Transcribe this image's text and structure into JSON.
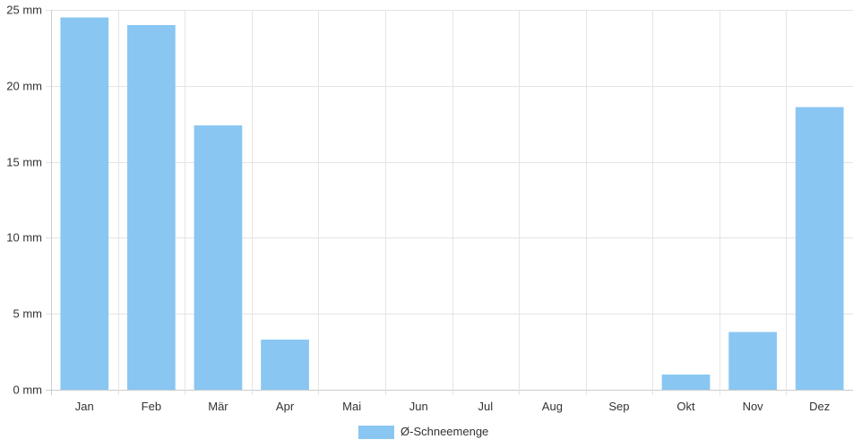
{
  "chart_data": {
    "type": "bar",
    "categories": [
      "Jan",
      "Feb",
      "Mär",
      "Apr",
      "Mai",
      "Jun",
      "Jul",
      "Aug",
      "Sep",
      "Okt",
      "Nov",
      "Dez"
    ],
    "series": [
      {
        "name": "Ø-Schneemenge",
        "values": [
          24.5,
          24.0,
          17.4,
          3.3,
          0,
          0,
          0,
          0,
          0,
          1.0,
          3.8,
          18.6
        ]
      }
    ],
    "ylim": [
      0,
      25
    ],
    "y_ticks": [
      0,
      5,
      10,
      15,
      20,
      25
    ],
    "y_tick_labels": [
      "0 mm",
      "5 mm",
      "10 mm",
      "15 mm",
      "20 mm",
      "25 mm"
    ],
    "grid": true,
    "legend_position": "bottom",
    "colors": {
      "bar": "#89c6f2",
      "grid": "#e4e4e4",
      "axis": "#cccccc",
      "text": "#333333"
    }
  }
}
